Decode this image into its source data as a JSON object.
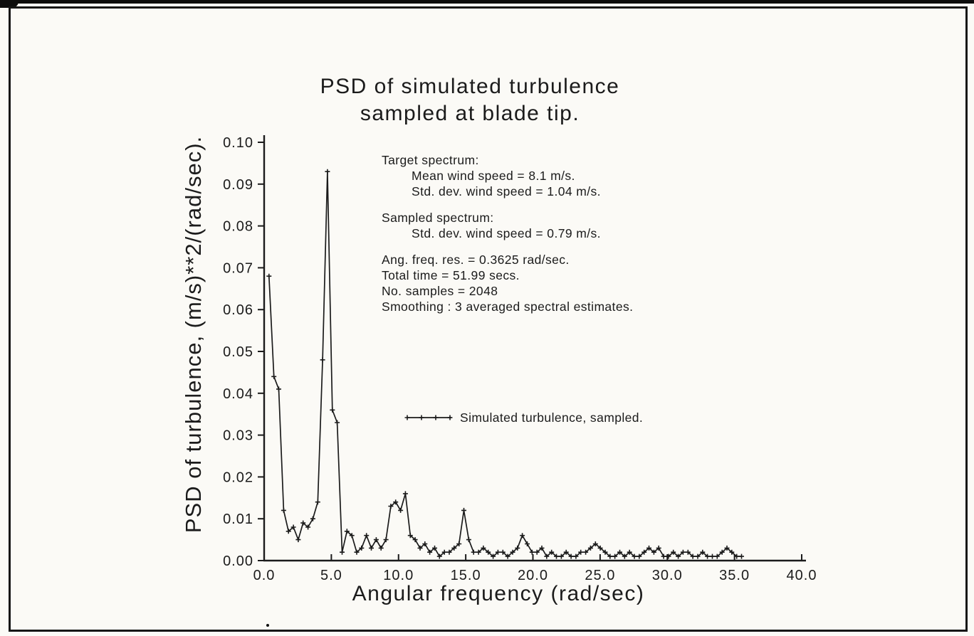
{
  "page": {
    "background": "#fbfaf6",
    "ink": "#1b1b1b",
    "frame_color": "#161616"
  },
  "chart_data": {
    "type": "line",
    "title_lines": [
      "PSD of simulated turbulence",
      "sampled at blade tip."
    ],
    "xlabel": "Angular frequency (rad/sec)",
    "ylabel": "PSD of turbulence, (m/s)**2/(rad/sec).",
    "xlim": [
      0.0,
      40.0
    ],
    "ylim": [
      0.0,
      0.1
    ],
    "x_ticks": [
      0,
      5,
      10,
      15,
      20,
      25,
      30,
      35,
      40
    ],
    "x_tick_labels": [
      "0.0",
      "5.0",
      "10.0",
      "15.0",
      "20.0",
      "25.0",
      "30.0",
      "35.0",
      "40.0"
    ],
    "y_ticks": [
      0.0,
      0.01,
      0.02,
      0.03,
      0.04,
      0.05,
      0.06,
      0.07,
      0.08,
      0.09,
      0.1
    ],
    "y_tick_labels": [
      "0.00",
      "0.01",
      "0.02",
      "0.03",
      "0.04",
      "0.05",
      "0.06",
      "0.07",
      "0.08",
      "0.09",
      "0.10"
    ],
    "grid": false,
    "legend": {
      "label": "Simulated turbulence, sampled.",
      "marker": "plus",
      "position": "center"
    },
    "annotations": [
      {
        "text": "Target spectrum:",
        "indent": 0,
        "gap_before": false
      },
      {
        "text": "Mean wind speed = 8.1 m/s.",
        "indent": 1,
        "gap_before": false
      },
      {
        "text": "Std. dev. wind speed = 1.04 m/s.",
        "indent": 1,
        "gap_before": false
      },
      {
        "text": "Sampled spectrum:",
        "indent": 0,
        "gap_before": true
      },
      {
        "text": "Std. dev. wind speed = 0.79 m/s.",
        "indent": 1,
        "gap_before": false
      },
      {
        "text": "Ang. freq. res. = 0.3625 rad/sec.",
        "indent": 0,
        "gap_before": true
      },
      {
        "text": "Total time = 51.99 secs.",
        "indent": 0,
        "gap_before": false
      },
      {
        "text": "No. samples = 2048",
        "indent": 0,
        "gap_before": false
      },
      {
        "text": "Smoothing : 3 averaged spectral estimates.",
        "indent": 0,
        "gap_before": false
      }
    ],
    "series": [
      {
        "name": "Simulated turbulence, sampled.",
        "marker": "plus",
        "x_start": 0.3625,
        "x_step": 0.3625,
        "y": [
          0.068,
          0.044,
          0.041,
          0.012,
          0.007,
          0.008,
          0.005,
          0.009,
          0.008,
          0.01,
          0.014,
          0.048,
          0.093,
          0.036,
          0.033,
          0.002,
          0.007,
          0.006,
          0.002,
          0.003,
          0.006,
          0.003,
          0.005,
          0.003,
          0.005,
          0.013,
          0.014,
          0.012,
          0.016,
          0.006,
          0.005,
          0.003,
          0.004,
          0.002,
          0.003,
          0.001,
          0.002,
          0.002,
          0.003,
          0.004,
          0.012,
          0.005,
          0.002,
          0.002,
          0.003,
          0.002,
          0.001,
          0.002,
          0.002,
          0.001,
          0.002,
          0.003,
          0.006,
          0.004,
          0.002,
          0.002,
          0.003,
          0.001,
          0.002,
          0.001,
          0.001,
          0.002,
          0.001,
          0.001,
          0.002,
          0.002,
          0.003,
          0.004,
          0.003,
          0.002,
          0.001,
          0.001,
          0.002,
          0.001,
          0.002,
          0.001,
          0.001,
          0.002,
          0.003,
          0.002,
          0.003,
          0.001,
          0.001,
          0.002,
          0.001,
          0.002,
          0.002,
          0.001,
          0.001,
          0.002,
          0.001,
          0.001,
          0.001,
          0.002,
          0.003,
          0.002,
          0.001,
          0.001
        ]
      }
    ]
  }
}
